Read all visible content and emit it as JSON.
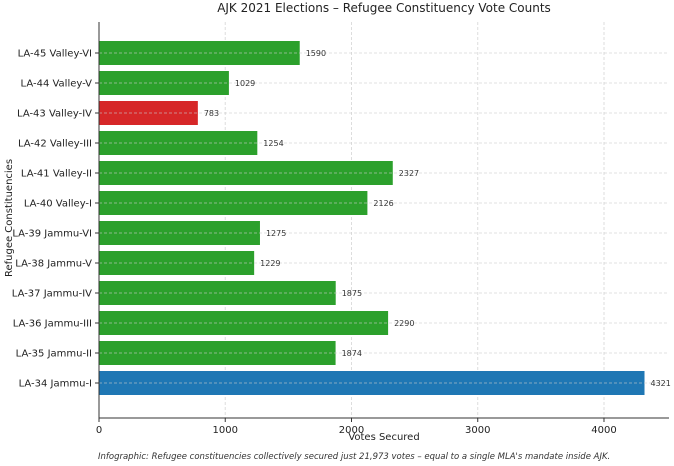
{
  "chart_data": {
    "type": "bar",
    "orientation": "horizontal",
    "title": "AJK 2021 Elections – Refugee Constituency Vote Counts",
    "xlabel": "Votes Secured",
    "ylabel": "Refugee Constituencies",
    "categories": [
      "LA-34 Jammu-I",
      "LA-35 Jammu-II",
      "LA-36 Jammu-III",
      "LA-37 Jammu-IV",
      "LA-38 Jammu-V",
      "LA-39 Jammu-VI",
      "LA-40 Valley-I",
      "LA-41 Valley-II",
      "LA-42 Valley-III",
      "LA-43 Valley-IV",
      "LA-44 Valley-V",
      "LA-45 Valley-VI"
    ],
    "values": [
      4321,
      1874,
      2290,
      1875,
      1229,
      1275,
      2126,
      2327,
      1254,
      783,
      1029,
      1590
    ],
    "colors": [
      "#1f77b4",
      "#2ca02c",
      "#2ca02c",
      "#2ca02c",
      "#2ca02c",
      "#2ca02c",
      "#2ca02c",
      "#2ca02c",
      "#2ca02c",
      "#d62728",
      "#2ca02c",
      "#2ca02c"
    ],
    "xlim": [
      0,
      4515
    ],
    "xticks": [
      0,
      1000,
      2000,
      3000,
      4000
    ],
    "grid": true,
    "data_labels": true,
    "footnote": "Infographic: Refugee constituencies collectively secured just 21,973 votes – equal to a single MLA's mandate inside AJK."
  }
}
